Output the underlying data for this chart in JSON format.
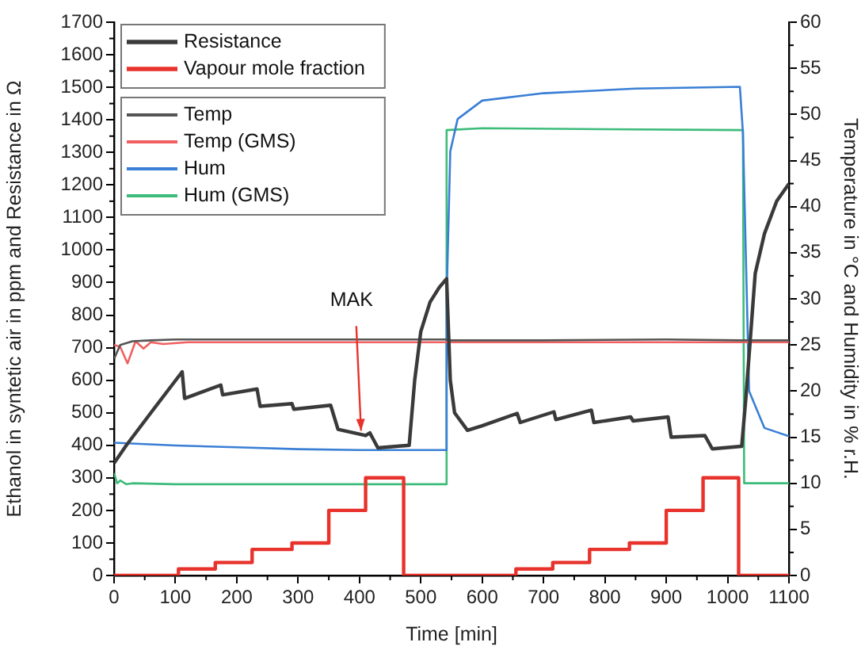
{
  "chart_data": {
    "type": "line",
    "xlabel": "Time [min]",
    "ylabel": "Ethanol in syntetic air in ppm and Resistance in Ω",
    "y2label": "Temperature in °C and Humidity in % r.H.",
    "xlim": [
      0,
      1100
    ],
    "xticks": [
      0,
      100,
      200,
      300,
      400,
      500,
      600,
      700,
      800,
      900,
      1000,
      1100
    ],
    "ylim": [
      0,
      1700
    ],
    "yticks": [
      0,
      100,
      200,
      300,
      400,
      500,
      600,
      700,
      800,
      900,
      1000,
      1100,
      1200,
      1300,
      1400,
      1500,
      1600,
      1700
    ],
    "y2lim": [
      0,
      60
    ],
    "y2ticks": [
      0,
      5,
      10,
      15,
      20,
      25,
      30,
      35,
      40,
      45,
      50,
      55,
      60
    ],
    "grid": false,
    "legend": "top left",
    "marker": "none",
    "line_style": "solid",
    "annotations": [
      {
        "text": "MAK",
        "x": 400,
        "y": 435
      }
    ],
    "series": [
      {
        "name": "Resistance",
        "color": "#3a3a3a",
        "axis": "y",
        "x": [
          0,
          20,
          60,
          111,
          115,
          174,
          177,
          233,
          238,
          290,
          293,
          353,
          365,
          410,
          417,
          430,
          481,
          490,
          500,
          515,
          530,
          542,
          548,
          555,
          576,
          600,
          657,
          662,
          717,
          720,
          778,
          782,
          842,
          846,
          903,
          908,
          963,
          975,
          1023,
          1030,
          1045,
          1060,
          1080,
          1100
        ],
        "values": [
          345,
          400,
          500,
          626,
          544,
          585,
          555,
          573,
          520,
          528,
          511,
          523,
          449,
          430,
          438,
          392,
          400,
          600,
          750,
          840,
          885,
          912,
          600,
          500,
          446,
          460,
          498,
          470,
          503,
          479,
          508,
          470,
          487,
          475,
          487,
          425,
          430,
          389,
          397,
          550,
          928,
          1050,
          1150,
          1204
        ]
      },
      {
        "name": "Vapour mole fraction",
        "color": "#e8322c",
        "type": "step",
        "axis": "y",
        "x": [
          0,
          105,
          165,
          225,
          290,
          350,
          410,
          472,
          655,
          715,
          775,
          840,
          900,
          960,
          1018,
          1100
        ],
        "values": [
          0,
          20,
          40,
          80,
          100,
          200,
          300,
          0,
          20,
          40,
          80,
          100,
          200,
          300,
          0,
          0
        ]
      },
      {
        "name": "Temp",
        "color": "#555555",
        "axis": "y2",
        "x": [
          0,
          10,
          30,
          60,
          100,
          300,
          540,
          545,
          700,
          900,
          1020,
          1030,
          1100
        ],
        "values": [
          23.5,
          25.0,
          25.4,
          25.5,
          25.6,
          25.6,
          25.6,
          25.5,
          25.5,
          25.6,
          25.5,
          25.5,
          25.5
        ]
      },
      {
        "name": "Temp (GMS)",
        "color": "#f06060",
        "axis": "y2",
        "x": [
          0,
          10,
          22,
          35,
          48,
          60,
          80,
          120,
          300,
          540,
          700,
          900,
          1100
        ],
        "values": [
          25.0,
          24.8,
          23.0,
          25.4,
          24.6,
          25.3,
          25.1,
          25.3,
          25.3,
          25.3,
          25.3,
          25.3,
          25.3
        ]
      },
      {
        "name": "Hum",
        "color": "#3a7fd5",
        "axis": "y2",
        "x": [
          0,
          100,
          200,
          300,
          400,
          540,
          542,
          548,
          560,
          600,
          700,
          850,
          1020,
          1025,
          1035,
          1060,
          1100
        ],
        "values": [
          14.4,
          14.1,
          13.9,
          13.7,
          13.6,
          13.6,
          30,
          46,
          49.5,
          51.5,
          52.3,
          52.8,
          53,
          48,
          20,
          16,
          15.1
        ]
      },
      {
        "name": "Hum (GMS)",
        "color": "#3dbb7a",
        "axis": "y2",
        "x": [
          0,
          5,
          10,
          20,
          30,
          100,
          300,
          540,
          542,
          600,
          800,
          1025,
          1027,
          1100
        ],
        "values": [
          11.1,
          10.0,
          10.3,
          9.9,
          10.0,
          9.9,
          9.9,
          9.9,
          48.3,
          48.5,
          48.4,
          48.3,
          10.0,
          10.0
        ]
      }
    ]
  }
}
